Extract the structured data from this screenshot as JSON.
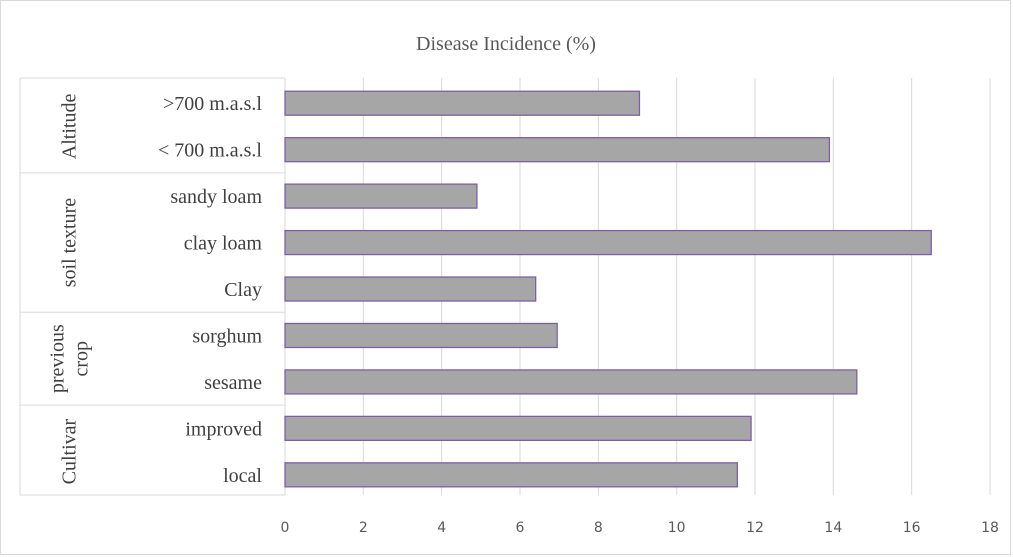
{
  "chart_data": {
    "type": "bar",
    "orientation": "horizontal",
    "title": "Disease Incidence (%)",
    "xlim": [
      0,
      18
    ],
    "x_ticks": [
      "0",
      "2",
      "4",
      "6",
      "8",
      "10",
      "12",
      "14",
      "16",
      "18"
    ],
    "grid": true,
    "groups": [
      {
        "label": "Altitude",
        "label_lines": [
          "Altitude"
        ],
        "categories": [
          ">700 m.a.s.l",
          "< 700 m.a.s.l"
        ],
        "values": [
          9.05,
          13.9
        ]
      },
      {
        "label": "soil texture",
        "label_lines": [
          "soil texture"
        ],
        "categories": [
          "sandy loam",
          "clay loam",
          "Clay"
        ],
        "values": [
          4.9,
          16.5,
          6.4
        ]
      },
      {
        "label": "previous crop",
        "label_lines": [
          "previous",
          "crop"
        ],
        "categories": [
          "sorghum",
          "sesame"
        ],
        "values": [
          6.95,
          14.6
        ]
      },
      {
        "label": "Cultivar",
        "label_lines": [
          "Cultivar"
        ],
        "categories": [
          "improved",
          "local"
        ],
        "values": [
          11.9,
          11.55
        ]
      }
    ],
    "colors": {
      "bar_fill": "#a6a6a6",
      "bar_stroke": "#7f5fa3",
      "grid": "#d9d9d9",
      "text": "#404040",
      "tick_text": "#595959"
    }
  }
}
